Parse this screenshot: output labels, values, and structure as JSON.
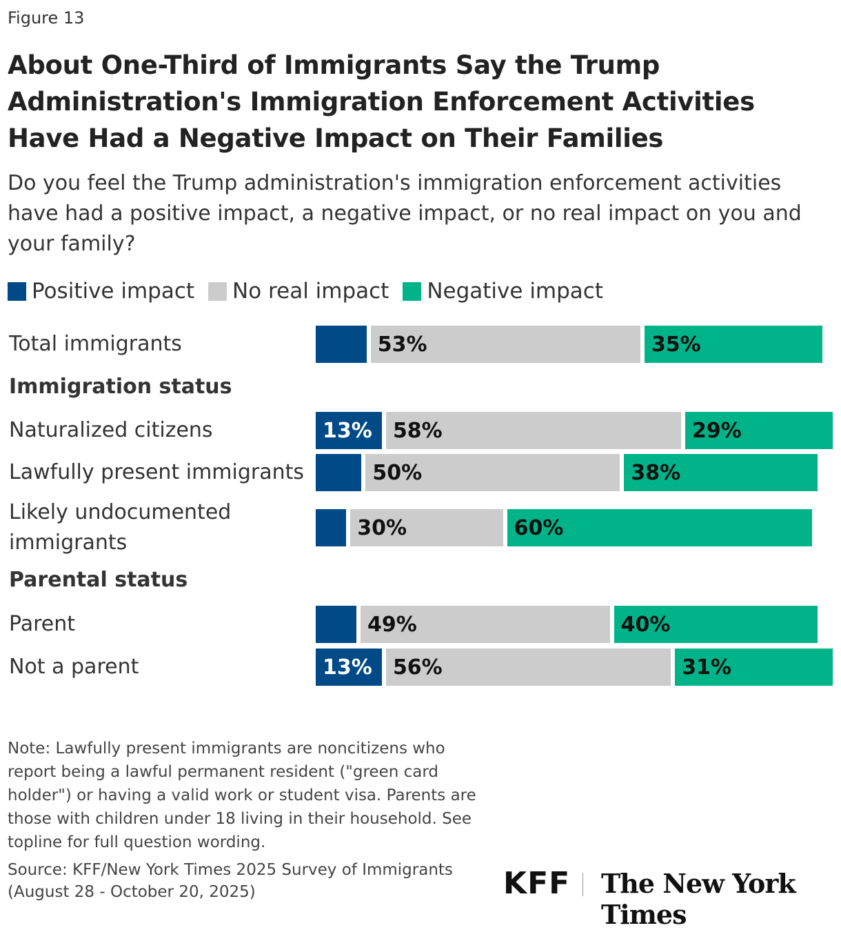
{
  "figure_label": "Figure 13",
  "chart_data": {
    "type": "bar",
    "orientation": "horizontal",
    "stacked": true,
    "title": "About One-Third of Immigrants Say the Trump Administration's Immigration Enforcement Activities Have Had a Negative Impact on Their Families",
    "subtitle": "Do you feel the Trump administration's immigration enforcement activities have had a positive impact, a negative impact, or no real impact on you and your family?",
    "legend_position": "top-left",
    "series": [
      {
        "name": "Positive impact",
        "color": "#004a87"
      },
      {
        "name": "No real impact",
        "color": "#cccccc"
      },
      {
        "name": "Negative impact",
        "color": "#00b388"
      }
    ],
    "rows": [
      {
        "label": "Total immigrants",
        "values": [
          10,
          53,
          35
        ],
        "labels": [
          "",
          "53%",
          "35%"
        ]
      },
      {
        "group": "Immigration status"
      },
      {
        "label": "Naturalized citizens",
        "values": [
          13,
          58,
          29
        ],
        "labels": [
          "13%",
          "58%",
          "29%"
        ]
      },
      {
        "label": "Lawfully present immigrants",
        "values": [
          9,
          50,
          38
        ],
        "labels": [
          "",
          "50%",
          "38%"
        ]
      },
      {
        "label": "Likely undocumented immigrants",
        "values": [
          6,
          30,
          60
        ],
        "labels": [
          "",
          "30%",
          "60%"
        ]
      },
      {
        "group": "Parental status"
      },
      {
        "label": "Parent",
        "values": [
          8,
          49,
          40
        ],
        "labels": [
          "",
          "49%",
          "40%"
        ]
      },
      {
        "label": "Not a parent",
        "values": [
          13,
          56,
          31
        ],
        "labels": [
          "13%",
          "56%",
          "31%"
        ]
      }
    ]
  },
  "note": "Note: Lawfully present immigrants are noncitizens who report being a lawful permanent resident (\"green card holder\") or having a valid work or student visa. Parents are those with children under 18 living in their household. See topline for full question wording.",
  "source": "Source: KFF/New York Times 2025 Survey of Immigrants (August 28 - October 20, 2025)",
  "logos": {
    "kff": "KFF",
    "nyt": "The New York Times"
  }
}
